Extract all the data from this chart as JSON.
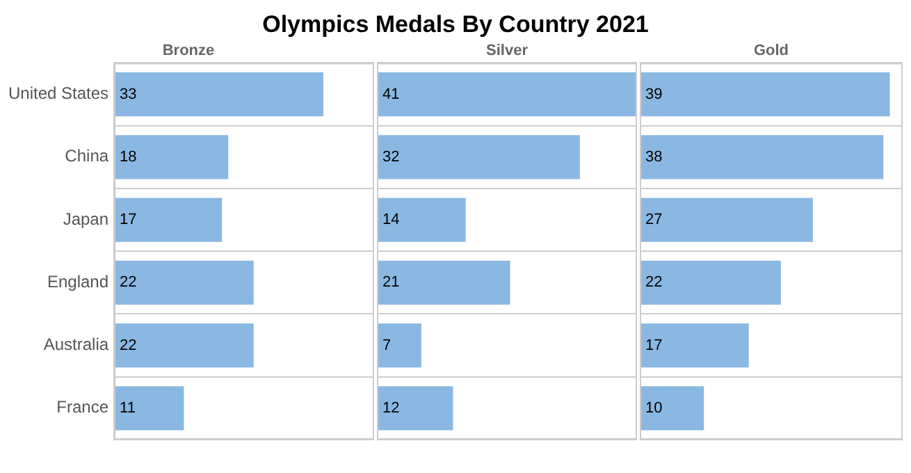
{
  "chart_data": [
    {
      "type": "bar",
      "orientation": "horizontal",
      "title": "Olympics Medals By Country 2021",
      "subtitle": "Bronze",
      "categories": [
        "United States",
        "China",
        "Japan",
        "England",
        "Australia",
        "France"
      ],
      "values": [
        33,
        18,
        17,
        22,
        22,
        11
      ],
      "color": "#8ab8e2",
      "data_labels": true,
      "grid": "y",
      "tick_labels": "y",
      "legend": false
    },
    {
      "type": "bar",
      "orientation": "horizontal",
      "title": "Silver",
      "categories": [
        null,
        null,
        null,
        null,
        null,
        null
      ],
      "values": [
        41,
        32,
        14,
        21,
        7,
        12
      ],
      "color": "#8ab8e2",
      "data_labels": true,
      "grid": "y",
      "tick_labels": false,
      "legend": false
    },
    {
      "type": "bar",
      "orientation": "horizontal",
      "title": "Gold",
      "categories": [
        null,
        null,
        null,
        null,
        null,
        null
      ],
      "values": [
        39,
        38,
        27,
        22,
        17,
        10
      ],
      "color": "#8ab8e2",
      "data_labels": true,
      "grid": "y",
      "tick_labels": false,
      "legend": false
    }
  ]
}
